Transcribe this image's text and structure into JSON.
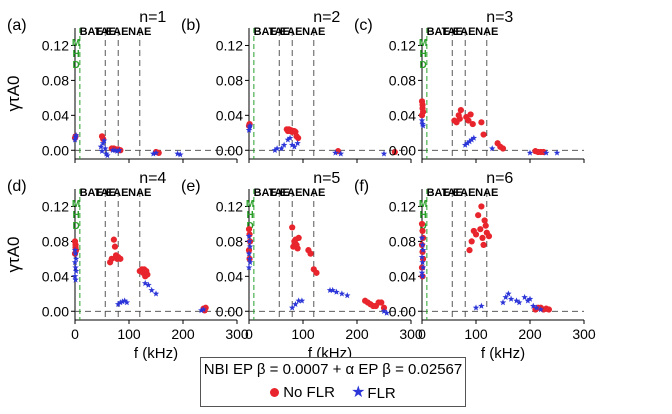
{
  "colors": {
    "no_flr": "#e8242c",
    "flr": "#2b35d8",
    "mhd": "#2aa02a",
    "guide": "#444444"
  },
  "legend": {
    "title": "NBI EP β = 0.0007 + α EP β = 0.02567",
    "no_flr_label": "No FLR",
    "flr_label": "FLR"
  },
  "chart_data": [
    {
      "type": "scatter",
      "panel": "(a)",
      "title": "n=1",
      "ylabel": "γτA0",
      "xlabel": "",
      "xlim": [
        0,
        300
      ],
      "ylim": [
        -0.01,
        0.14
      ],
      "xticks": [],
      "yticks": [
        "0.00",
        "0.04",
        "0.08",
        "0.12"
      ],
      "gaps": [
        "BAE",
        "TAE",
        "EAE",
        "NAE"
      ],
      "mhd_label": [
        "M",
        "H",
        "D"
      ],
      "series": [
        {
          "key": "no_flr",
          "points": [
            [
              0,
              0.014
            ],
            [
              1,
              0.016
            ],
            [
              50,
              0.016
            ],
            [
              52,
              0.013
            ],
            [
              68,
              0.002
            ],
            [
              72,
              0.002
            ],
            [
              76,
              0.001
            ],
            [
              80,
              0.001
            ],
            [
              84,
              0.0
            ],
            [
              150,
              -0.002
            ],
            [
              155,
              -0.003
            ]
          ]
        },
        {
          "key": "flr",
          "points": [
            [
              0,
              0.012
            ],
            [
              1,
              0.015
            ],
            [
              2,
              0.017
            ],
            [
              48,
              0.004
            ],
            [
              50,
              -0.001
            ],
            [
              52,
              0.008
            ],
            [
              54,
              0.011
            ],
            [
              56,
              0.002
            ],
            [
              58,
              -0.004
            ],
            [
              60,
              -0.006
            ],
            [
              70,
              0.0
            ],
            [
              74,
              0.0
            ],
            [
              78,
              -0.001
            ],
            [
              82,
              0.0
            ],
            [
              145,
              -0.004
            ],
            [
              150,
              -0.003
            ],
            [
              190,
              -0.004
            ],
            [
              195,
              -0.005
            ]
          ]
        }
      ]
    },
    {
      "type": "scatter",
      "panel": "(b)",
      "title": "n=2",
      "ylabel": "",
      "xlabel": "",
      "xlim": [
        0,
        300
      ],
      "ylim": [
        -0.01,
        0.14
      ],
      "xticks": [],
      "yticks": [
        "0.00",
        "0.04",
        "0.08",
        "0.12"
      ],
      "gaps": [
        "BAE",
        "TAE",
        "EAE",
        "NAE"
      ],
      "mhd_label": [],
      "series": [
        {
          "key": "no_flr",
          "points": [
            [
              0,
              0.028
            ],
            [
              1,
              0.03
            ],
            [
              70,
              0.024
            ],
            [
              72,
              0.022
            ],
            [
              74,
              0.024
            ],
            [
              76,
              0.022
            ],
            [
              78,
              0.023
            ],
            [
              80,
              0.021
            ],
            [
              82,
              0.022
            ],
            [
              84,
              0.022
            ],
            [
              86,
              0.021
            ],
            [
              88,
              0.016
            ],
            [
              91,
              0.014
            ],
            [
              165,
              -0.001
            ],
            [
              270,
              -0.002
            ]
          ]
        },
        {
          "key": "flr",
          "points": [
            [
              0,
              0.023
            ],
            [
              1,
              0.026
            ],
            [
              2,
              0.028
            ],
            [
              48,
              0.0
            ],
            [
              52,
              0.002
            ],
            [
              60,
              0.002
            ],
            [
              65,
              0.006
            ],
            [
              72,
              0.012
            ],
            [
              76,
              0.014
            ],
            [
              80,
              0.006
            ],
            [
              84,
              0.004
            ],
            [
              90,
              0.008
            ],
            [
              160,
              -0.003
            ],
            [
              170,
              -0.004
            ],
            [
              250,
              -0.004
            ]
          ]
        }
      ]
    },
    {
      "type": "scatter",
      "panel": "(c)",
      "title": "n=3",
      "ylabel": "",
      "xlabel": "",
      "xlim": [
        0,
        300
      ],
      "ylim": [
        -0.01,
        0.14
      ],
      "xticks": [],
      "yticks": [
        "0.00",
        "0.04",
        "0.08",
        "0.12"
      ],
      "gaps": [
        "BAE",
        "TAE",
        "EAE",
        "NAE"
      ],
      "mhd_label": [
        "M",
        "H",
        "D"
      ],
      "series": [
        {
          "key": "no_flr",
          "points": [
            [
              0,
              0.056
            ],
            [
              1,
              0.052
            ],
            [
              1,
              0.048
            ],
            [
              2,
              0.044
            ],
            [
              0,
              0.04
            ],
            [
              60,
              0.034
            ],
            [
              64,
              0.032
            ],
            [
              68,
              0.04
            ],
            [
              70,
              0.036
            ],
            [
              72,
              0.046
            ],
            [
              82,
              0.038
            ],
            [
              86,
              0.034
            ],
            [
              90,
              0.041
            ],
            [
              94,
              0.03
            ],
            [
              110,
              0.032
            ],
            [
              114,
              0.018
            ],
            [
              140,
              0.008
            ],
            [
              145,
              0.004
            ],
            [
              150,
              0.002
            ],
            [
              210,
              -0.001
            ],
            [
              215,
              -0.002
            ],
            [
              220,
              -0.002
            ],
            [
              225,
              -0.002
            ]
          ]
        },
        {
          "key": "flr",
          "points": [
            [
              0,
              0.034
            ],
            [
              1,
              0.03
            ],
            [
              2,
              0.028
            ],
            [
              80,
              0.006
            ],
            [
              84,
              0.008
            ],
            [
              88,
              0.01
            ],
            [
              92,
              0.012
            ],
            [
              96,
              0.014
            ],
            [
              130,
              0.002
            ],
            [
              200,
              -0.003
            ],
            [
              230,
              -0.003
            ],
            [
              250,
              -0.003
            ]
          ]
        }
      ]
    },
    {
      "type": "scatter",
      "panel": "(d)",
      "title": "n=4",
      "ylabel": "γτA0",
      "xlabel": "f (kHz)",
      "xlim": [
        0,
        300
      ],
      "ylim": [
        -0.01,
        0.14
      ],
      "xticks": [
        "0",
        "100",
        "200",
        "300"
      ],
      "yticks": [
        "0.00",
        "0.04",
        "0.08",
        "0.12"
      ],
      "gaps": [
        "BAE",
        "TAE",
        "EAE",
        "NAE"
      ],
      "mhd_label": [
        "M",
        "H",
        "D"
      ],
      "series": [
        {
          "key": "no_flr",
          "points": [
            [
              0,
              0.08
            ],
            [
              1,
              0.076
            ],
            [
              1,
              0.073
            ],
            [
              2,
              0.07
            ],
            [
              0,
              0.066
            ],
            [
              65,
              0.056
            ],
            [
              68,
              0.06
            ],
            [
              72,
              0.082
            ],
            [
              74,
              0.074
            ],
            [
              76,
              0.064
            ],
            [
              78,
              0.06
            ],
            [
              80,
              0.062
            ],
            [
              84,
              0.06
            ],
            [
              120,
              0.046
            ],
            [
              124,
              0.048
            ],
            [
              126,
              0.044
            ],
            [
              128,
              0.048
            ],
            [
              130,
              0.04
            ],
            [
              132,
              0.046
            ],
            [
              134,
              0.042
            ],
            [
              238,
              0.003
            ],
            [
              240,
              0.001
            ],
            [
              242,
              0.004
            ]
          ]
        },
        {
          "key": "flr",
          "points": [
            [
              0,
              0.07
            ],
            [
              1,
              0.066
            ],
            [
              2,
              0.06
            ],
            [
              0,
              0.056
            ],
            [
              1,
              0.05
            ],
            [
              2,
              0.046
            ],
            [
              0,
              0.04
            ],
            [
              1,
              0.036
            ],
            [
              80,
              0.008
            ],
            [
              84,
              0.01
            ],
            [
              88,
              0.011
            ],
            [
              92,
              0.012
            ],
            [
              96,
              0.01
            ],
            [
              130,
              0.032
            ],
            [
              136,
              0.03
            ],
            [
              142,
              0.024
            ],
            [
              150,
              0.02
            ],
            [
              234,
              0.001
            ],
            [
              238,
              0.002
            ]
          ]
        }
      ]
    },
    {
      "type": "scatter",
      "panel": "(e)",
      "title": "n=5",
      "ylabel": "",
      "xlabel": "f (kHz)",
      "xlim": [
        0,
        300
      ],
      "ylim": [
        -0.01,
        0.14
      ],
      "xticks": [
        "0",
        "100",
        "200",
        "300"
      ],
      "yticks": [
        "0.00",
        "0.04",
        "0.08",
        "0.12"
      ],
      "gaps": [
        "BAE",
        "TAE",
        "EAE",
        "NAE"
      ],
      "mhd_label": [
        "M",
        "H",
        "D"
      ],
      "series": [
        {
          "key": "no_flr",
          "points": [
            [
              0,
              0.094
            ],
            [
              1,
              0.088
            ],
            [
              2,
              0.08
            ],
            [
              0,
              0.07
            ],
            [
              1,
              0.06
            ],
            [
              80,
              0.096
            ],
            [
              82,
              0.074
            ],
            [
              84,
              0.08
            ],
            [
              86,
              0.082
            ],
            [
              88,
              0.076
            ],
            [
              90,
              0.072
            ],
            [
              92,
              0.084
            ],
            [
              110,
              0.07
            ],
            [
              114,
              0.066
            ],
            [
              120,
              0.048
            ],
            [
              125,
              0.044
            ],
            [
              215,
              0.012
            ],
            [
              220,
              0.01
            ],
            [
              225,
              0.008
            ],
            [
              230,
              0.006
            ],
            [
              235,
              0.006
            ],
            [
              240,
              0.01
            ],
            [
              245,
              0.01
            ],
            [
              250,
              0.004
            ]
          ]
        },
        {
          "key": "flr",
          "points": [
            [
              0,
              0.086
            ],
            [
              1,
              0.08
            ],
            [
              2,
              0.074
            ],
            [
              0,
              0.066
            ],
            [
              1,
              0.06
            ],
            [
              2,
              0.056
            ],
            [
              0,
              0.05
            ],
            [
              80,
              0.004
            ],
            [
              86,
              0.008
            ],
            [
              92,
              0.012
            ],
            [
              98,
              0.012
            ],
            [
              150,
              0.024
            ],
            [
              155,
              0.024
            ],
            [
              162,
              0.022
            ],
            [
              172,
              0.02
            ],
            [
              182,
              0.018
            ],
            [
              250,
              0.0
            ],
            [
              255,
              -0.002
            ]
          ]
        }
      ]
    },
    {
      "type": "scatter",
      "panel": "(f)",
      "title": "n=6",
      "ylabel": "",
      "xlabel": "f (kHz)",
      "xlim": [
        0,
        300
      ],
      "ylim": [
        -0.01,
        0.14
      ],
      "xticks": [
        "0",
        "100",
        "200",
        "300"
      ],
      "yticks": [
        "0.00",
        "0.04",
        "0.08",
        "0.12"
      ],
      "gaps": [
        "BAE",
        "TAE",
        "EAE",
        "NAE"
      ],
      "mhd_label": [
        "M",
        "H",
        "D"
      ],
      "series": [
        {
          "key": "no_flr",
          "points": [
            [
              0,
              0.1
            ],
            [
              1,
              0.092
            ],
            [
              2,
              0.084
            ],
            [
              0,
              0.076
            ],
            [
              1,
              0.068
            ],
            [
              2,
              0.06
            ],
            [
              0,
              0.05
            ],
            [
              1,
              0.04
            ],
            [
              88,
              0.07
            ],
            [
              92,
              0.08
            ],
            [
              96,
              0.092
            ],
            [
              100,
              0.088
            ],
            [
              104,
              0.11
            ],
            [
              108,
              0.094
            ],
            [
              110,
              0.12
            ],
            [
              112,
              0.084
            ],
            [
              114,
              0.076
            ],
            [
              116,
              0.104
            ],
            [
              118,
              0.098
            ],
            [
              120,
              0.09
            ],
            [
              124,
              0.086
            ],
            [
              210,
              0.002
            ],
            [
              215,
              0.004
            ],
            [
              220,
              0.004
            ],
            [
              225,
              0.002
            ],
            [
              230,
              0.003
            ],
            [
              235,
              0.002
            ]
          ]
        },
        {
          "key": "flr",
          "points": [
            [
              0,
              0.084
            ],
            [
              1,
              0.076
            ],
            [
              2,
              0.07
            ],
            [
              0,
              0.062
            ],
            [
              1,
              0.056
            ],
            [
              2,
              0.05
            ],
            [
              0,
              0.044
            ],
            [
              1,
              0.04
            ],
            [
              100,
              0.004
            ],
            [
              110,
              0.006
            ],
            [
              150,
              0.01
            ],
            [
              155,
              0.016
            ],
            [
              160,
              0.02
            ],
            [
              165,
              0.014
            ],
            [
              175,
              0.012
            ],
            [
              180,
              0.01
            ],
            [
              190,
              0.016
            ],
            [
              196,
              0.012
            ],
            [
              200,
              0.014
            ],
            [
              206,
              0.006
            ],
            [
              212,
              0.004
            ],
            [
              220,
              0.002
            ]
          ]
        }
      ]
    }
  ]
}
